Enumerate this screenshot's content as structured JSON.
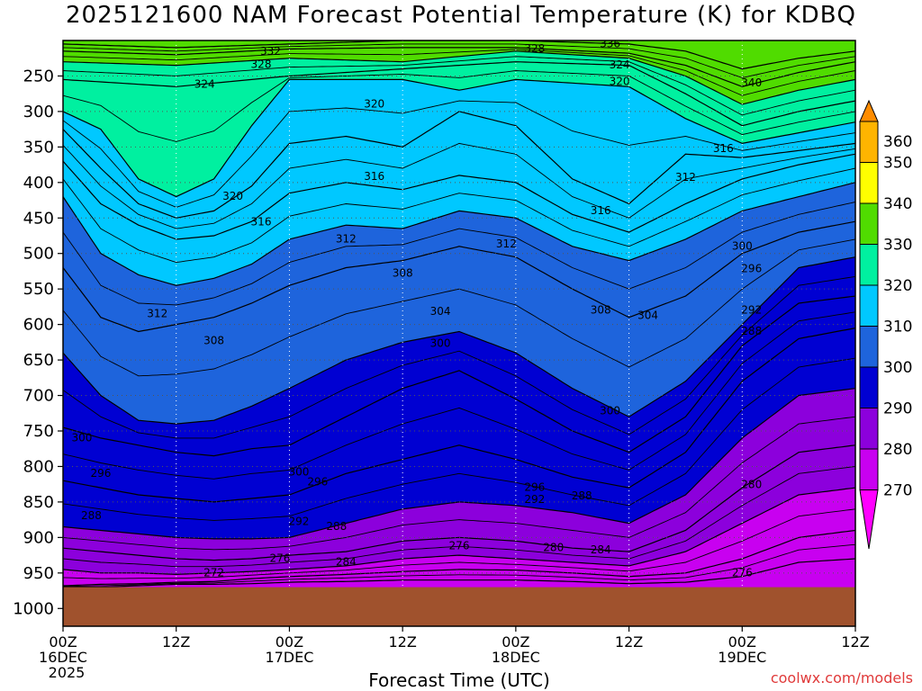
{
  "chart_data": {
    "type": "heatmap",
    "title": "2025121600 NAM Forecast Potential Temperature (K) for KDBQ",
    "xlabel": "Forecast Time (UTC)",
    "ylabel": "",
    "credit": "coolwx.com/models",
    "x_ticks": [
      {
        "hour": 0,
        "labels": [
          "00Z",
          "16DEC",
          "2025"
        ]
      },
      {
        "hour": 12,
        "labels": [
          "12Z"
        ]
      },
      {
        "hour": 24,
        "labels": [
          "00Z",
          "17DEC"
        ]
      },
      {
        "hour": 36,
        "labels": [
          "12Z"
        ]
      },
      {
        "hour": 48,
        "labels": [
          "00Z",
          "18DEC"
        ]
      },
      {
        "hour": 60,
        "labels": [
          "12Z"
        ]
      },
      {
        "hour": 72,
        "labels": [
          "00Z",
          "19DEC"
        ]
      },
      {
        "hour": 84,
        "labels": [
          "12Z"
        ]
      }
    ],
    "xlim": [
      0,
      84
    ],
    "y_ticks": [
      250,
      300,
      350,
      400,
      450,
      500,
      550,
      600,
      650,
      700,
      750,
      800,
      850,
      900,
      950,
      1000
    ],
    "ylim": [
      200,
      1025
    ],
    "surface_pressure": 970,
    "colorbar": {
      "levels": [
        270,
        280,
        290,
        300,
        310,
        320,
        330,
        340,
        350,
        360
      ],
      "labels": [
        "270",
        "280",
        "290",
        "300",
        "310",
        "320",
        "330",
        "340",
        "350",
        "360"
      ],
      "colors": [
        "#ff00ff",
        "#c800f0",
        "#8c00dc",
        "#0000d2",
        "#1e64dc",
        "#00c8ff",
        "#00f0a0",
        "#50dc00",
        "#ffff00",
        "#ffb400",
        "#ff8c00"
      ]
    },
    "surface_color": "#a0522d",
    "isentropes": [
      {
        "theta": 336,
        "hours": [
          0,
          12,
          24,
          36,
          48,
          60,
          66,
          72,
          78,
          84
        ],
        "pressure": [
          205,
          210,
          205,
          200,
          200,
          205,
          215,
          240,
          225,
          215
        ]
      },
      {
        "theta": 332,
        "hours": [
          0,
          12,
          24,
          36,
          48,
          60,
          66,
          72,
          78,
          84
        ],
        "pressure": [
          215,
          220,
          212,
          210,
          210,
          218,
          235,
          265,
          245,
          230
        ]
      },
      {
        "theta": 328,
        "hours": [
          0,
          12,
          24,
          36,
          48,
          60,
          66,
          72,
          78,
          84
        ],
        "pressure": [
          230,
          235,
          225,
          230,
          215,
          225,
          250,
          290,
          270,
          255
        ]
      },
      {
        "theta": 324,
        "hours": [
          0,
          12,
          24,
          36,
          48,
          60,
          66,
          72,
          78,
          84
        ],
        "pressure": [
          255,
          265,
          250,
          240,
          230,
          235,
          275,
          320,
          300,
          285
        ]
      },
      {
        "theta": 320,
        "hours": [
          0,
          4,
          8,
          12,
          16,
          20,
          24,
          30,
          36,
          42,
          48,
          54,
          60,
          66,
          72,
          78,
          84
        ],
        "pressure": [
          300,
          325,
          395,
          420,
          395,
          320,
          255,
          255,
          255,
          270,
          255,
          260,
          265,
          310,
          345,
          330,
          315
        ]
      },
      {
        "theta": 316,
        "hours": [
          0,
          4,
          8,
          12,
          16,
          20,
          24,
          30,
          36,
          42,
          48,
          54,
          60,
          66,
          72,
          78,
          84
        ],
        "pressure": [
          325,
          380,
          430,
          450,
          440,
          405,
          345,
          335,
          350,
          300,
          320,
          395,
          430,
          360,
          365,
          355,
          345
        ]
      },
      {
        "theta": 312,
        "hours": [
          0,
          4,
          8,
          12,
          16,
          20,
          24,
          30,
          36,
          42,
          48,
          54,
          60,
          66,
          72,
          78,
          84
        ],
        "pressure": [
          370,
          430,
          460,
          480,
          475,
          455,
          415,
          400,
          410,
          390,
          400,
          445,
          470,
          430,
          395,
          375,
          360
        ]
      },
      {
        "theta": 308,
        "hours": [
          0,
          4,
          8,
          12,
          16,
          20,
          24,
          30,
          36,
          42,
          48,
          54,
          60,
          66,
          72,
          78,
          84
        ],
        "pressure": [
          420,
          500,
          530,
          545,
          535,
          515,
          480,
          460,
          465,
          440,
          450,
          490,
          510,
          480,
          440,
          420,
          400
        ]
      },
      {
        "theta": 304,
        "hours": [
          0,
          4,
          8,
          12,
          16,
          20,
          24,
          30,
          36,
          42,
          48,
          54,
          60,
          66,
          72,
          78,
          84
        ],
        "pressure": [
          520,
          590,
          610,
          600,
          590,
          570,
          545,
          520,
          510,
          490,
          505,
          550,
          590,
          560,
          500,
          470,
          455
        ]
      },
      {
        "theta": 300,
        "hours": [
          0,
          4,
          8,
          12,
          16,
          20,
          24,
          30,
          36,
          42,
          48,
          54,
          60,
          66,
          72,
          78,
          84
        ],
        "pressure": [
          640,
          700,
          735,
          740,
          735,
          715,
          690,
          650,
          625,
          610,
          640,
          690,
          730,
          680,
          600,
          520,
          505
        ]
      },
      {
        "theta": 296,
        "hours": [
          0,
          4,
          8,
          12,
          16,
          20,
          24,
          30,
          36,
          42,
          48,
          54,
          60,
          66,
          72,
          78,
          84
        ],
        "pressure": [
          745,
          760,
          770,
          780,
          785,
          775,
          770,
          730,
          690,
          665,
          705,
          750,
          780,
          730,
          630,
          570,
          560
        ]
      },
      {
        "theta": 292,
        "hours": [
          0,
          4,
          8,
          12,
          16,
          20,
          24,
          30,
          36,
          42,
          48,
          54,
          60,
          66,
          72,
          78,
          84
        ],
        "pressure": [
          820,
          830,
          840,
          845,
          850,
          845,
          840,
          810,
          790,
          770,
          790,
          815,
          830,
          780,
          680,
          620,
          605
        ]
      },
      {
        "theta": 288,
        "hours": [
          0,
          4,
          8,
          12,
          16,
          20,
          24,
          30,
          36,
          42,
          48,
          54,
          60,
          66,
          72,
          78,
          84
        ],
        "pressure": [
          885,
          890,
          895,
          900,
          902,
          902,
          900,
          880,
          860,
          850,
          855,
          865,
          880,
          840,
          760,
          700,
          690
        ]
      },
      {
        "theta": 284,
        "hours": [
          0,
          4,
          8,
          12,
          16,
          20,
          24,
          30,
          36,
          42,
          48,
          54,
          60,
          66,
          72,
          78,
          84
        ],
        "pressure": [
          915,
          920,
          925,
          930,
          932,
          930,
          925,
          920,
          905,
          900,
          905,
          915,
          920,
          890,
          830,
          780,
          770
        ]
      },
      {
        "theta": 280,
        "hours": [
          0,
          4,
          8,
          12,
          16,
          20,
          24,
          30,
          36,
          42,
          48,
          54,
          60,
          66,
          72,
          78,
          84
        ],
        "pressure": [
          945,
          950,
          950,
          952,
          950,
          948,
          945,
          940,
          930,
          925,
          930,
          935,
          940,
          920,
          880,
          840,
          830
        ]
      },
      {
        "theta": 276,
        "hours": [
          0,
          4,
          8,
          12,
          16,
          20,
          24,
          30,
          36,
          42,
          48,
          54,
          60,
          66,
          72,
          78,
          84
        ],
        "pressure": [
          968,
          966,
          965,
          963,
          962,
          958,
          955,
          952,
          948,
          945,
          946,
          950,
          955,
          950,
          930,
          900,
          890
        ]
      },
      {
        "theta": 272,
        "hours": [
          0,
          4,
          8,
          12,
          16,
          20,
          24,
          30,
          36,
          42,
          48,
          54,
          60,
          66,
          72,
          78,
          84
        ],
        "pressure": [
          970,
          970,
          968,
          966,
          966,
          965,
          963,
          962,
          960,
          960,
          960,
          962,
          965,
          963,
          955,
          935,
          930
        ]
      }
    ],
    "contour_labels": [
      {
        "text": "336",
        "hour": 58,
        "pressure": 205
      },
      {
        "text": "332",
        "hour": 22,
        "pressure": 216
      },
      {
        "text": "328",
        "hour": 21,
        "pressure": 234
      },
      {
        "text": "328",
        "hour": 50,
        "pressure": 212
      },
      {
        "text": "324",
        "hour": 59,
        "pressure": 235
      },
      {
        "text": "324",
        "hour": 15,
        "pressure": 262
      },
      {
        "text": "320",
        "hour": 59,
        "pressure": 258
      },
      {
        "text": "340",
        "hour": 73,
        "pressure": 260
      },
      {
        "text": "320",
        "hour": 33,
        "pressure": 290
      },
      {
        "text": "316",
        "hour": 70,
        "pressure": 353
      },
      {
        "text": "312",
        "hour": 66,
        "pressure": 393
      },
      {
        "text": "316",
        "hour": 33,
        "pressure": 392
      },
      {
        "text": "320",
        "hour": 18,
        "pressure": 420
      },
      {
        "text": "316",
        "hour": 21,
        "pressure": 456
      },
      {
        "text": "316",
        "hour": 57,
        "pressure": 440
      },
      {
        "text": "312",
        "hour": 30,
        "pressure": 480
      },
      {
        "text": "312",
        "hour": 47,
        "pressure": 487
      },
      {
        "text": "300",
        "hour": 72,
        "pressure": 490
      },
      {
        "text": "296",
        "hour": 73,
        "pressure": 522
      },
      {
        "text": "308",
        "hour": 36,
        "pressure": 528
      },
      {
        "text": "312",
        "hour": 10,
        "pressure": 585
      },
      {
        "text": "308",
        "hour": 57,
        "pressure": 580
      },
      {
        "text": "304",
        "hour": 40,
        "pressure": 582
      },
      {
        "text": "304",
        "hour": 62,
        "pressure": 588
      },
      {
        "text": "292",
        "hour": 73,
        "pressure": 580
      },
      {
        "text": "288",
        "hour": 73,
        "pressure": 610
      },
      {
        "text": "308",
        "hour": 16,
        "pressure": 623
      },
      {
        "text": "300",
        "hour": 40,
        "pressure": 627
      },
      {
        "text": "300",
        "hour": 58,
        "pressure": 722
      },
      {
        "text": "300",
        "hour": 2,
        "pressure": 760
      },
      {
        "text": "296",
        "hour": 4,
        "pressure": 810
      },
      {
        "text": "300",
        "hour": 25,
        "pressure": 808
      },
      {
        "text": "296",
        "hour": 27,
        "pressure": 822
      },
      {
        "text": "280",
        "hour": 73,
        "pressure": 826
      },
      {
        "text": "296",
        "hour": 50,
        "pressure": 830
      },
      {
        "text": "292",
        "hour": 50,
        "pressure": 847
      },
      {
        "text": "288",
        "hour": 55,
        "pressure": 842
      },
      {
        "text": "288",
        "hour": 3,
        "pressure": 870
      },
      {
        "text": "292",
        "hour": 25,
        "pressure": 878
      },
      {
        "text": "288",
        "hour": 29,
        "pressure": 885
      },
      {
        "text": "280",
        "hour": 52,
        "pressure": 915
      },
      {
        "text": "284",
        "hour": 57,
        "pressure": 918
      },
      {
        "text": "276",
        "hour": 42,
        "pressure": 912
      },
      {
        "text": "276",
        "hour": 23,
        "pressure": 930
      },
      {
        "text": "284",
        "hour": 30,
        "pressure": 935
      },
      {
        "text": "272",
        "hour": 16,
        "pressure": 950
      },
      {
        "text": "276",
        "hour": 72,
        "pressure": 950
      }
    ]
  }
}
